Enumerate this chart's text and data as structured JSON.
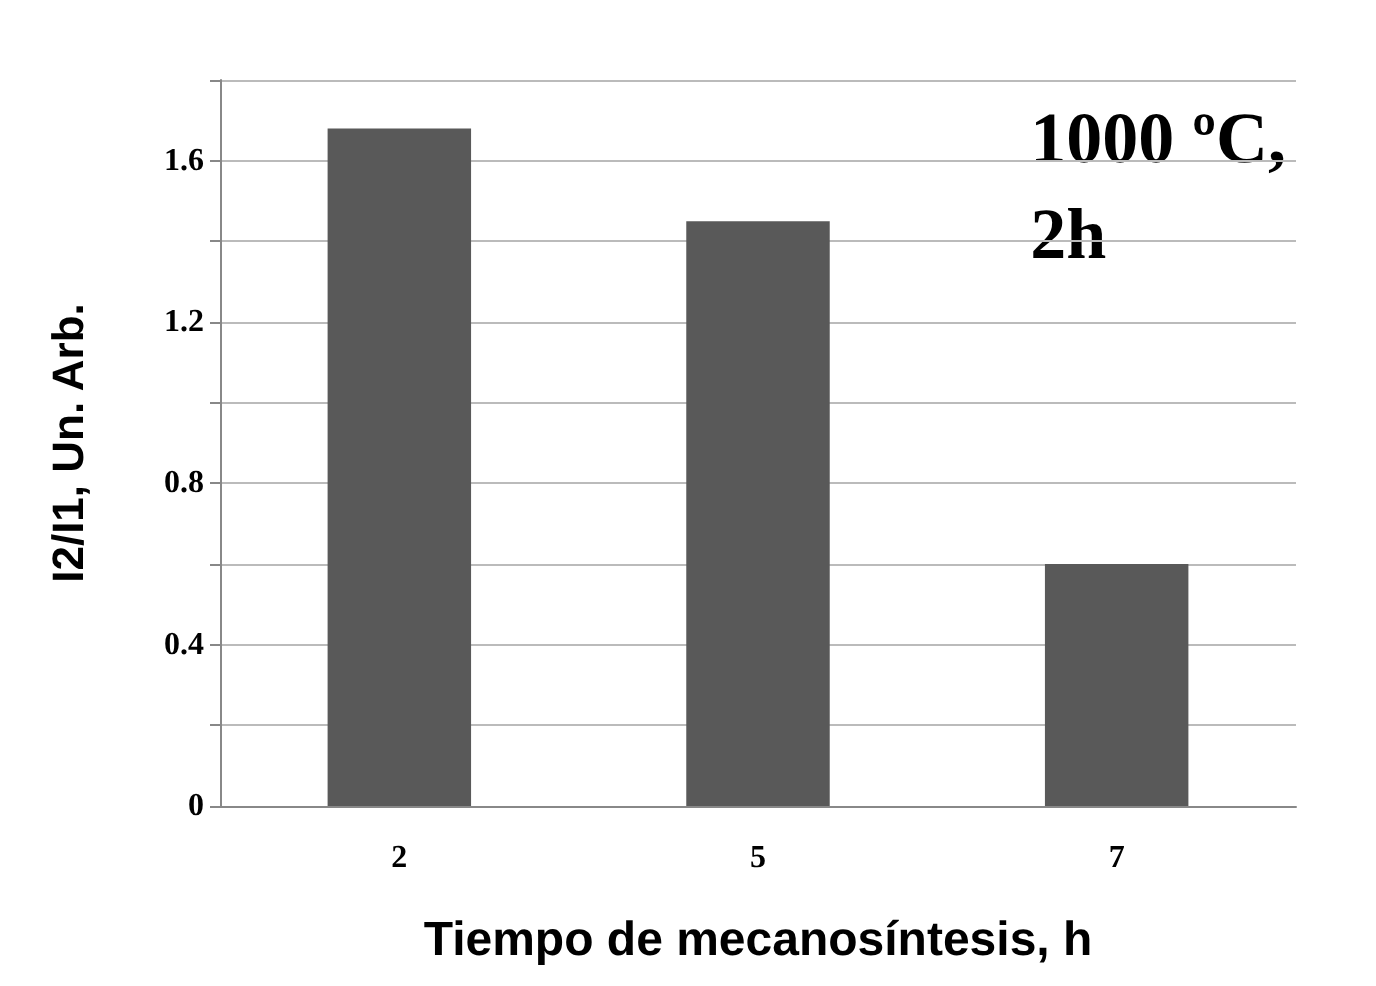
{
  "chart_data": {
    "type": "bar",
    "xlabel": "Tiempo de mecanosíntesis, h",
    "ylabel": "I2/I1, Un. Arb.",
    "categories": [
      "2",
      "5",
      "7"
    ],
    "values": [
      1.68,
      1.45,
      0.6
    ],
    "color": "#595959",
    "ylim": [
      0,
      1.8
    ],
    "yticks": [
      0,
      {
        "value": 0.2,
        "label": null
      },
      0.4,
      {
        "value": 0.6,
        "label": null
      },
      0.8,
      {
        "value": 1.0,
        "label": null
      },
      1.2,
      {
        "value": 1.4,
        "label": null
      },
      1.6,
      {
        "value": 1.8,
        "label": null
      }
    ],
    "grid": true,
    "annotations": [
      "1000 ºC,\n2h"
    ]
  }
}
